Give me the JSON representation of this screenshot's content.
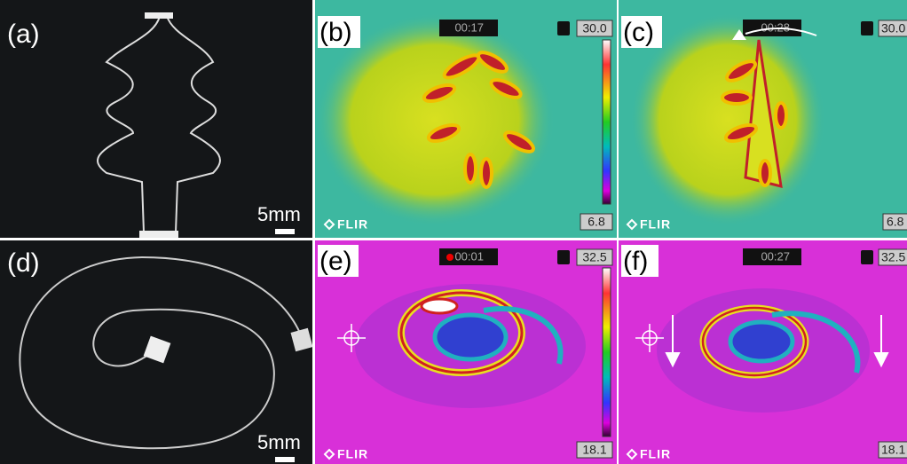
{
  "panels": [
    {
      "label": "(a)",
      "scale_bar": "5mm"
    },
    {
      "label": "(b)",
      "timer": "00:17",
      "scale_max": "30.0",
      "scale_min": "6.8",
      "brand": "FLIR"
    },
    {
      "label": "(c)",
      "timer": "00:28",
      "scale_max": "30.0",
      "scale_min": "6.8",
      "brand": "FLIR"
    },
    {
      "label": "(d)",
      "scale_bar": "5mm"
    },
    {
      "label": "(e)",
      "timer": "00:01",
      "scale_max": "32.5",
      "scale_min": "18.1",
      "brand": "FLIR"
    },
    {
      "label": "(f)",
      "timer": "00:27",
      "scale_max": "32.5",
      "scale_min": "18.1",
      "brand": "FLIR"
    }
  ]
}
